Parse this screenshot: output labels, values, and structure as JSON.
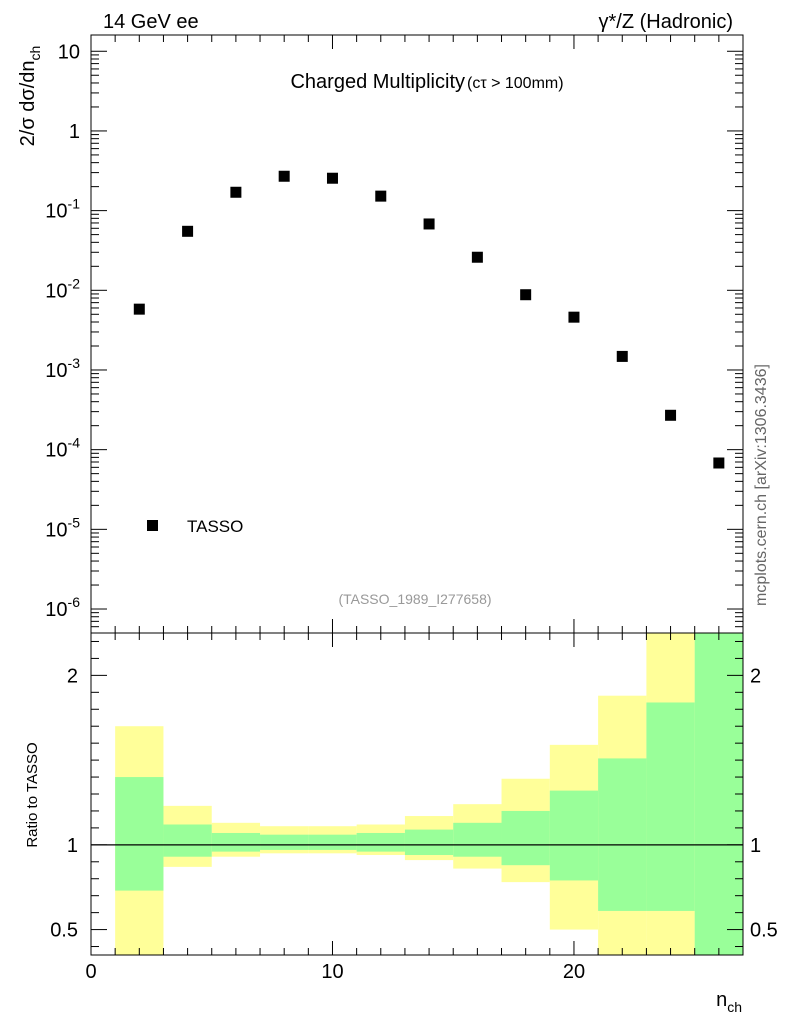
{
  "header": {
    "left_label": "14 GeV ee",
    "right_label": "γ*/Z (Hadronic)",
    "side_label": "mcplots.cern.ch [arXiv:1306.3436]"
  },
  "chart_data": [
    {
      "type": "scatter",
      "panel": "main",
      "title": "Charged Multiplicity",
      "subtitle": "(cτ > 100mm)",
      "analysis_tag": "(TASSO_1989_I277658)",
      "ylabel": "2/σ dσ/dn_ch",
      "yscale": "log",
      "ylim": [
        5e-07,
        16
      ],
      "xlim": [
        0,
        27
      ],
      "legend": {
        "entries": [
          "TASSO"
        ],
        "placement": "bottom-left"
      },
      "y_tick_labels": [
        {
          "value": 1e-06,
          "base": "10",
          "exp": "-6"
        },
        {
          "value": 1e-05,
          "base": "10",
          "exp": "-5"
        },
        {
          "value": 0.0001,
          "base": "10",
          "exp": "-4"
        },
        {
          "value": 0.001,
          "base": "10",
          "exp": "-3"
        },
        {
          "value": 0.01,
          "base": "10",
          "exp": "-2"
        },
        {
          "value": 0.1,
          "base": "10",
          "exp": "-1"
        },
        {
          "value": 1,
          "base": "1",
          "exp": ""
        },
        {
          "value": 10,
          "base": "10",
          "exp": ""
        }
      ],
      "series": [
        {
          "name": "TASSO",
          "x": [
            2,
            4,
            6,
            8,
            10,
            12,
            14,
            16,
            18,
            20,
            22,
            24,
            26
          ],
          "y": [
            0.0058,
            0.055,
            0.17,
            0.27,
            0.255,
            0.152,
            0.068,
            0.026,
            0.0088,
            0.0046,
            0.00148,
            0.00027,
            6.8e-05
          ]
        }
      ]
    },
    {
      "type": "area",
      "panel": "ratio",
      "ylabel": "Ratio to TASSO",
      "xlabel": "n_ch",
      "xlim": [
        0,
        27
      ],
      "ylim": [
        0.35,
        2.25
      ],
      "x_tick_labels": [
        {
          "value": 0,
          "label": "0"
        },
        {
          "value": 10,
          "label": "10"
        },
        {
          "value": 20,
          "label": "20"
        }
      ],
      "y_tick_labels": [
        {
          "value": 0.5,
          "label": "0.5"
        },
        {
          "value": 1,
          "label": "1"
        },
        {
          "value": 2,
          "label": "2"
        }
      ],
      "reference_line": 1,
      "bins": {
        "edges": [
          1,
          3,
          5,
          7,
          9,
          11,
          13,
          15,
          17,
          19,
          21,
          23,
          25,
          27
        ],
        "yellow_band": [
          [
            0.35,
            1.7
          ],
          [
            0.87,
            1.23
          ],
          [
            0.93,
            1.13
          ],
          [
            0.95,
            1.11
          ],
          [
            0.95,
            1.11
          ],
          [
            0.94,
            1.12
          ],
          [
            0.91,
            1.17
          ],
          [
            0.86,
            1.24
          ],
          [
            0.78,
            1.39
          ],
          [
            0.5,
            1.59
          ],
          [
            0.35,
            1.88
          ],
          [
            0.35,
            2.28
          ],
          [
            0.35,
            2.28
          ]
        ],
        "green_band": [
          [
            0.73,
            1.4
          ],
          [
            0.93,
            1.12
          ],
          [
            0.96,
            1.07
          ],
          [
            0.97,
            1.06
          ],
          [
            0.97,
            1.06
          ],
          [
            0.96,
            1.07
          ],
          [
            0.94,
            1.09
          ],
          [
            0.93,
            1.13
          ],
          [
            0.88,
            1.2
          ],
          [
            0.79,
            1.32
          ],
          [
            0.61,
            1.51
          ],
          [
            0.61,
            1.84
          ],
          [
            0.35,
            2.28
          ]
        ]
      },
      "colors": {
        "yellow": "#ffff99",
        "green": "#99ff99"
      }
    }
  ]
}
